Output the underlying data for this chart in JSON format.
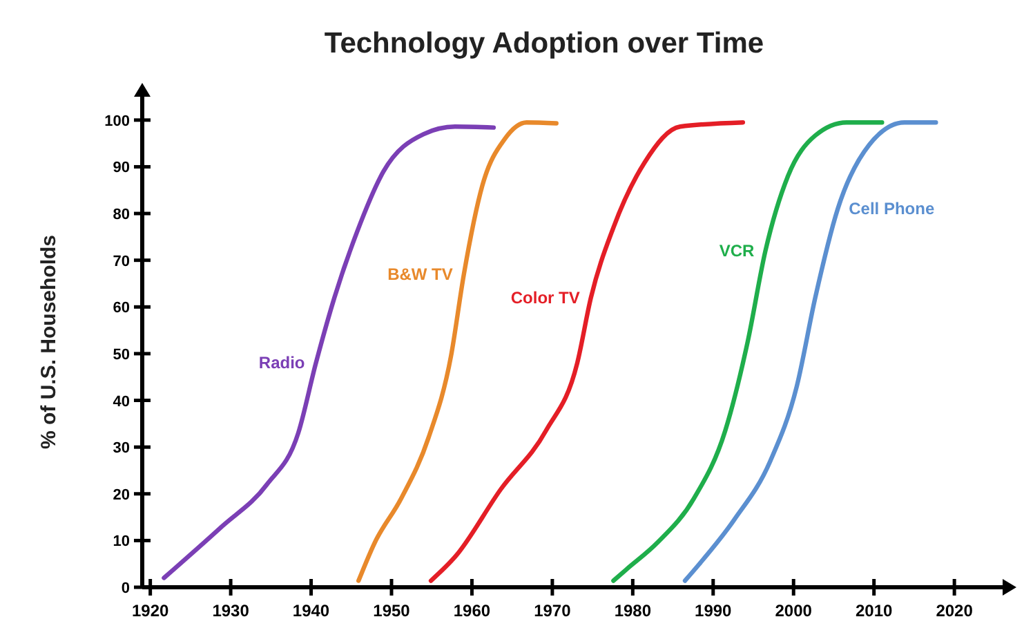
{
  "chart_data": {
    "type": "line",
    "title": "Technology Adoption over Time",
    "ylabel": "% of U.S. Households",
    "xlim": [
      1919,
      2026
    ],
    "xticks": [
      1920,
      1930,
      1940,
      1950,
      1960,
      1970,
      1980,
      1990,
      2000,
      2010,
      2020
    ],
    "ylim": [
      0,
      105
    ],
    "yticks": [
      0,
      10,
      20,
      30,
      40,
      50,
      60,
      70,
      80,
      90,
      100
    ],
    "grid": false,
    "legend": false,
    "marker": "none",
    "line_style": "solid",
    "series": [
      {
        "name": "Radio",
        "color": "#7b3fb5",
        "x": [
          1921.7,
          1928.9,
          1934.5,
          1938.4,
          1940.6,
          1942.9,
          1945.7,
          1949,
          1954,
          1957.9,
          1962.7
        ],
        "values": [
          2,
          13,
          22,
          33,
          48,
          62,
          76,
          89,
          97,
          98.6,
          98.4
        ]
      },
      {
        "name": "B&W TV",
        "color": "#e8892b",
        "x": [
          1945.9,
          1947.9,
          1951.2,
          1954.6,
          1957.4,
          1959,
          1961.3,
          1964.1,
          1966.8,
          1970.5
        ],
        "values": [
          1.4,
          9.5,
          19,
          32,
          49.5,
          67,
          86,
          96,
          99.5,
          99.3
        ]
      },
      {
        "name": "Color TV",
        "color": "#e41e26",
        "x": [
          1954.9,
          1958,
          1963.6,
          1969.2,
          1973.1,
          1974.8,
          1977.6,
          1981.5,
          1985.9,
          1993.7
        ],
        "values": [
          1.4,
          6.7,
          21,
          33.5,
          48,
          62,
          77,
          91,
          98.6,
          99.5
        ]
      },
      {
        "name": "VCR",
        "color": "#1fae4b",
        "x": [
          1977.6,
          1979.2,
          1983.1,
          1987.6,
          1991.5,
          1994.3,
          1996.5,
          1999.3,
          2002.7,
          2006.6,
          2011
        ],
        "values": [
          1.4,
          3.8,
          9.6,
          19,
          33.5,
          52.6,
          72,
          88,
          96.7,
          99.5,
          99.5
        ]
      },
      {
        "name": "Cell Phone",
        "color": "#5b8fd0",
        "x": [
          1986.5,
          1988.2,
          1992.6,
          1997.1,
          2000.4,
          2002.7,
          2005.5,
          2009.4,
          2013.8,
          2017.7
        ],
        "values": [
          1.4,
          4.8,
          14.4,
          27,
          43,
          62,
          81,
          94.7,
          99.5,
          99.5
        ]
      }
    ]
  }
}
